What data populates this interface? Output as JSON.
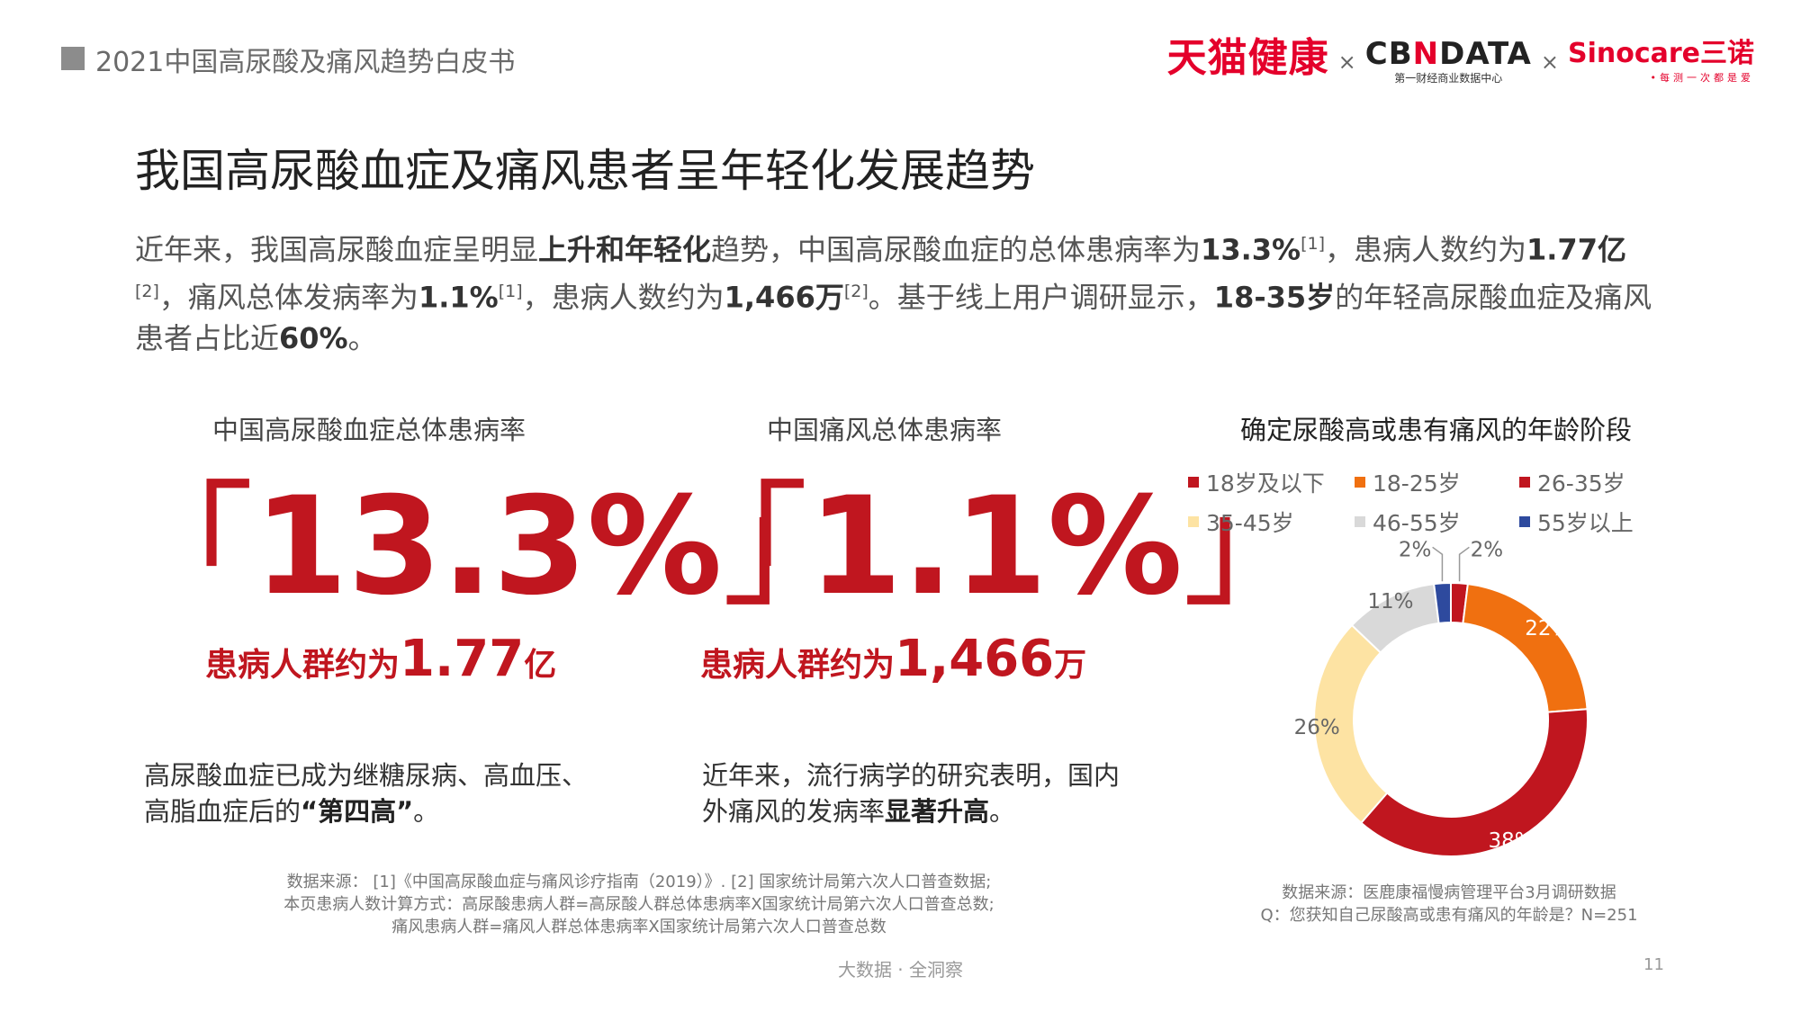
{
  "header": {
    "title": "2021中国高尿酸及痛风趋势白皮书",
    "logos": {
      "tmall": "天猫健康",
      "cross": "×",
      "cbn_left": "CB",
      "cbn_n": "N",
      "cbn_right": "DATA",
      "cbn_sub": "第一财经商业数据中心",
      "sinocare": "Sinocare三诺",
      "sinocare_sub": "•每测一次都是爱"
    }
  },
  "main_title": "我国高尿酸血症及痛风患者呈年轻化发展趋势",
  "intro": {
    "p1": "近年来，我国高尿酸血症呈明显",
    "b1": "上升和年轻化",
    "p2": "趋势，中国高尿酸血症的总体患病率为",
    "b2": "13.3%",
    "s1": "[1]",
    "p3": "，患病人数约为",
    "b3": "1.77亿",
    "s2": "[2]",
    "p4": "，痛风总体发病率为",
    "b4": "1.1%",
    "s3": "[1]",
    "p5": "，患病人数约为",
    "b5": "1,466万",
    "s4": "[2]",
    "p6": "。基于线上用户调研显示，",
    "b6": "18-35岁",
    "p7": "的年轻高尿酸血症及痛风患者占比近",
    "b7": "60%",
    "p8": "。"
  },
  "stats": [
    {
      "label": "中国高尿酸血症总体患病率",
      "bracket_open": "「",
      "value": "13.3%",
      "bracket_close": "」",
      "sub_prefix": "患病人群约为",
      "sub_value": "1.77",
      "sub_unit": "亿",
      "desc_line1": "高尿酸血症已成为继糖尿病、高血压、",
      "desc_line2_plain": "高脂血症后的",
      "desc_line2_bold": "“第四高”",
      "desc_line2_end": "。"
    },
    {
      "label": "中国痛风总体患病率",
      "bracket_open": "「",
      "value": "1.1%",
      "bracket_close": "」",
      "sub_prefix": "患病人群约为",
      "sub_value": "1,466",
      "sub_unit": "万",
      "desc_line1": "近年来，流行病学的研究表明，国内",
      "desc_line2_plain": "外痛风的发病率",
      "desc_line2_bold": "显著升高",
      "desc_line2_end": "。"
    }
  ],
  "chart_data": {
    "type": "pie",
    "title": "确定尿酸高或患有痛风的年龄阶段",
    "categories": [
      "18岁及以下",
      "18-25岁",
      "26-35岁",
      "35-45岁",
      "46-55岁",
      "55岁以上"
    ],
    "values": [
      2,
      22,
      38,
      26,
      11,
      2
    ],
    "value_labels": [
      "2%",
      "22%",
      "38%",
      "26%",
      "11%",
      "2%"
    ],
    "colors": [
      "#c0161f",
      "#f07010",
      "#c0161f",
      "#fde3a3",
      "#d9d9d9",
      "#2e4a9e"
    ],
    "donut": true,
    "legend_position": "top"
  },
  "sources": {
    "left": [
      "数据来源： [1]《中国高尿酸血症与痛风诊疗指南（2019）》. [2] 国家统计局第六次人口普查数据;",
      "本页患病人数计算方式：高尿酸患病人群=高尿酸人群总体患病率X国家统计局第六次人口普查总数;",
      "痛风患病人群=痛风人群总体患病率X国家统计局第六次人口普查总数"
    ],
    "right": [
      "数据来源：医鹿康福慢病管理平台3月调研数据",
      "Q：您获知自己尿酸高或患有痛风的年龄是？N=251"
    ]
  },
  "footer": "大数据 · 全洞察",
  "page_number": "11"
}
